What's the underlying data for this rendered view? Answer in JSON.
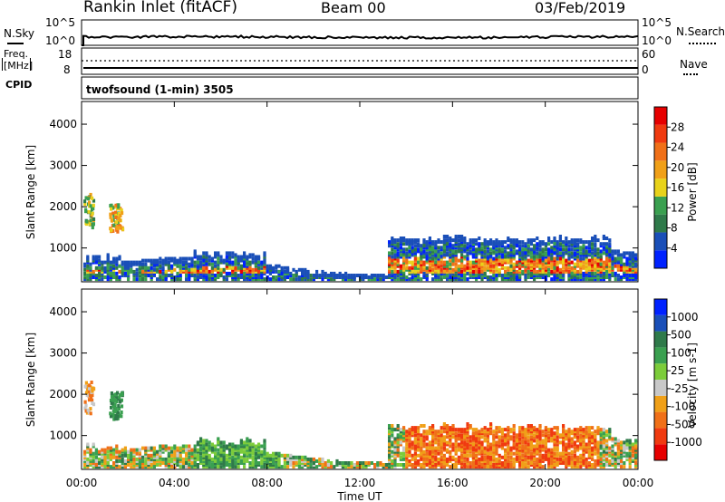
{
  "header": {
    "station": "Rankin Inlet (fitACF)",
    "beam": "Beam 00",
    "date": "03/Feb/2019"
  },
  "noise_panel": {
    "left_label": "N.Sky",
    "right_label": "N.Search",
    "tick_top": "10^5",
    "tick_bottom": "10^0"
  },
  "freq_panel": {
    "left_label_line1": "Freq.",
    "left_label_line2": "[MHz]",
    "left_tick_top": "18",
    "left_tick_bottom": "8",
    "right_label": "Nave",
    "right_tick_top": "60",
    "right_tick_bottom": "0"
  },
  "cpid": {
    "label": "CPID",
    "program": "twofsound (1-min) 3505"
  },
  "colors": {
    "power_scale": [
      "#0022ff",
      "#1a4fb8",
      "#2f7a4a",
      "#3aa050",
      "#e8d21a",
      "#f0a018",
      "#f07018",
      "#f03a10",
      "#e60000"
    ],
    "velocity_scale": [
      "#e60000",
      "#f03a10",
      "#f07018",
      "#f0a018",
      "#c8c8c8",
      "#7ccc3a",
      "#3aa050",
      "#2f7a4a",
      "#1a4fb8",
      "#0022ff"
    ]
  },
  "chart_data": [
    {
      "type": "heatmap",
      "title": "",
      "xlabel": "",
      "ylabel": "Slant Range [km]",
      "x_ticks": [
        "00:00",
        "04:00",
        "08:00",
        "12:00",
        "16:00",
        "20:00",
        "00:00"
      ],
      "y_ticks": [
        1000,
        2000,
        3000,
        4000
      ],
      "ylim": [
        180,
        4550
      ],
      "colorbar": {
        "label": "Power [dB]",
        "ticks": [
          "4",
          "8",
          "12",
          "16",
          "20",
          "24",
          "28"
        ]
      }
    },
    {
      "type": "heatmap",
      "title": "",
      "xlabel": "Time UT",
      "ylabel": "Slant Range [km]",
      "x_ticks": [
        "00:00",
        "04:00",
        "08:00",
        "12:00",
        "16:00",
        "20:00",
        "00:00"
      ],
      "y_ticks": [
        1000,
        2000,
        3000,
        4000
      ],
      "ylim": [
        180,
        4550
      ],
      "colorbar": {
        "label": "Velocity [m s-1]",
        "ticks": [
          "-1000",
          "-500",
          "-100",
          "-25",
          "25",
          "100",
          "500",
          "1000"
        ]
      }
    }
  ]
}
